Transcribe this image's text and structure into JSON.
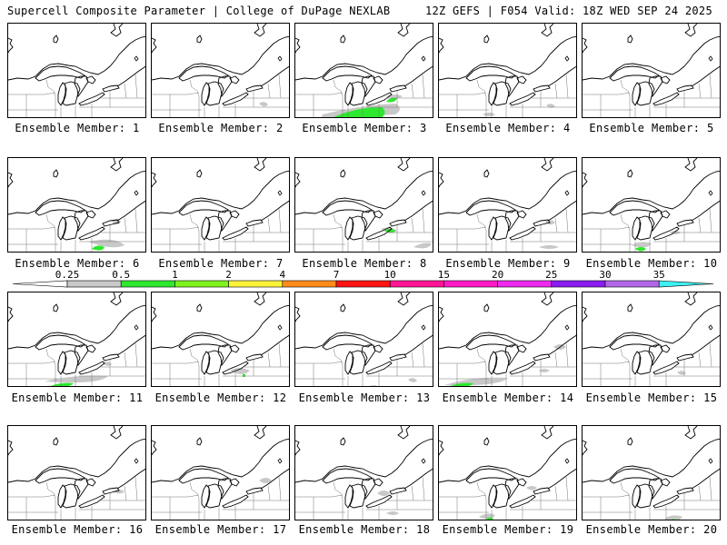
{
  "header": {
    "title": "Supercell Composite Parameter | College of DuPage NEXLAB",
    "run_info": "12Z GEFS | F054 Valid: 18Z WED SEP 24 2025"
  },
  "colorbar": {
    "labels": [
      "0.25",
      "0.5",
      "1",
      "2",
      "4",
      "7",
      "10",
      "15",
      "20",
      "25",
      "30",
      "35"
    ],
    "colors": [
      "#c8c8c8",
      "#2ee82e",
      "#7ef21c",
      "#fff33a",
      "#ff8c1a",
      "#ff1414",
      "#ff1493",
      "#ff1ac6",
      "#ee2af0",
      "#8a1cf0",
      "#b266e8",
      "#3ef0f0"
    ]
  },
  "panels": [
    {
      "label": "Ensemble Member: 1"
    },
    {
      "label": "Ensemble Member: 2"
    },
    {
      "label": "Ensemble Member: 3"
    },
    {
      "label": "Ensemble Member: 4"
    },
    {
      "label": "Ensemble Member: 5"
    },
    {
      "label": "Ensemble Member: 6"
    },
    {
      "label": "Ensemble Member: 7"
    },
    {
      "label": "Ensemble Member: 8"
    },
    {
      "label": "Ensemble Member: 9"
    },
    {
      "label": "Ensemble Member: 10"
    },
    {
      "label": "Ensemble Member: 11"
    },
    {
      "label": "Ensemble Member: 12"
    },
    {
      "label": "Ensemble Member: 13"
    },
    {
      "label": "Ensemble Member: 14"
    },
    {
      "label": "Ensemble Member: 15"
    },
    {
      "label": "Ensemble Member: 16"
    },
    {
      "label": "Ensemble Member: 17"
    },
    {
      "label": "Ensemble Member: 18"
    },
    {
      "label": "Ensemble Member: 19"
    },
    {
      "label": "Ensemble Member: 20"
    }
  ]
}
